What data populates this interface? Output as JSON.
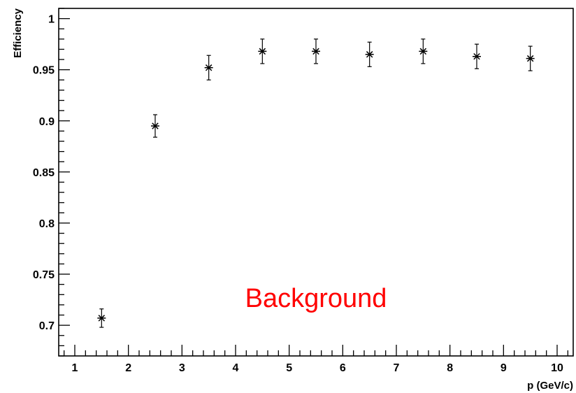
{
  "chart_data": {
    "type": "scatter",
    "xlabel": "p (GeV/c)",
    "ylabel": "Efficiency",
    "xlim": [
      0.7,
      10.3
    ],
    "ylim": [
      0.67,
      1.01
    ],
    "x_ticks": [
      1,
      2,
      3,
      4,
      5,
      6,
      7,
      8,
      9,
      10
    ],
    "y_ticks": [
      0.7,
      0.75,
      0.8,
      0.85,
      0.9,
      0.95,
      1
    ],
    "y_tick_labels": [
      "0.7",
      "0.75",
      "0.8",
      "0.85",
      "0.9",
      "0.95",
      "1"
    ],
    "grid": false,
    "marker": "asterisk",
    "series": [
      {
        "x": [
          1.5,
          2.5,
          3.5,
          4.5,
          5.5,
          6.5,
          7.5,
          8.5,
          9.5
        ],
        "y": [
          0.707,
          0.895,
          0.952,
          0.968,
          0.968,
          0.965,
          0.968,
          0.963,
          0.961
        ],
        "yerr": [
          0.009,
          0.011,
          0.012,
          0.012,
          0.012,
          0.012,
          0.012,
          0.012,
          0.012
        ]
      }
    ],
    "annotations": [
      {
        "text": "Background",
        "x": 5.5,
        "y": 0.718,
        "color": "#ff0000"
      }
    ]
  }
}
